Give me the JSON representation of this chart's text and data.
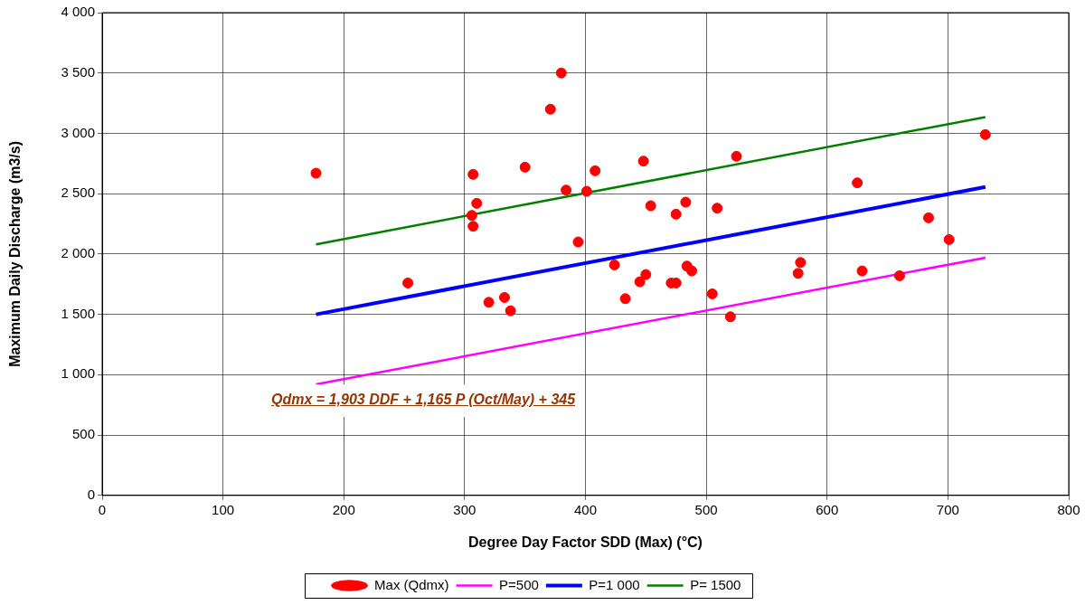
{
  "chart_data": {
    "type": "scatter",
    "xlabel": "Degree Day Factor SDD (Max) (°C)",
    "ylabel": "Maximum Daily Discharge (m3/s)",
    "xlim": [
      0,
      800
    ],
    "xticks": [
      0,
      100,
      200,
      300,
      400,
      500,
      600,
      700,
      800
    ],
    "ylim": [
      0,
      4000
    ],
    "yticks": [
      0,
      500,
      {
        "value": 1000,
        "label": "1 000"
      },
      {
        "value": 1500,
        "label": "1 500"
      },
      {
        "value": 2000,
        "label": "2 000"
      },
      {
        "value": 2500,
        "label": "2 500"
      },
      {
        "value": 3000,
        "label": "3 000"
      },
      {
        "value": 3500,
        "label": "3 500"
      },
      {
        "value": 4000,
        "label": "4 000"
      }
    ],
    "grid": true,
    "legend": "bottom",
    "annotations": [
      "Qdmx = 1,903 DDF + 1,165 P (Oct/May) + 345"
    ],
    "series": [
      {
        "name": "Max (Qdmx)",
        "type": "scatter",
        "marker": "circle",
        "color": "#ff0000",
        "x": [
          177,
          253,
          306,
          307,
          307,
          310,
          320,
          333,
          338,
          350,
          371,
          380,
          384,
          394,
          401,
          408,
          424,
          433,
          445,
          448,
          450,
          454,
          471,
          475,
          475,
          483,
          484,
          488,
          505,
          509,
          520,
          525,
          576,
          578,
          625,
          629,
          660,
          684,
          701,
          731
        ],
        "values": [
          2670,
          1760,
          2320,
          2660,
          2230,
          2420,
          1600,
          1640,
          1530,
          2720,
          3200,
          3500,
          2530,
          2100,
          2520,
          2690,
          1910,
          1630,
          1770,
          2770,
          1830,
          2400,
          1760,
          1760,
          2330,
          2430,
          1900,
          1860,
          1670,
          2380,
          1480,
          2810,
          1840,
          1930,
          2590,
          1860,
          1820,
          2300,
          2120,
          2990
        ]
      },
      {
        "name": "P=500",
        "type": "line",
        "marker": "none",
        "color": "#ff00ff",
        "x": [
          177,
          731
        ],
        "values": [
          920,
          1970
        ]
      },
      {
        "name": "P=1 000",
        "type": "line",
        "marker": "none",
        "color": "#0000ff",
        "x": [
          177,
          731
        ],
        "values": [
          1500,
          2555
        ]
      },
      {
        "name": "P= 1500",
        "type": "line",
        "marker": "none",
        "color": "#008000",
        "x": [
          177,
          731
        ],
        "values": [
          2080,
          3135
        ]
      }
    ]
  }
}
